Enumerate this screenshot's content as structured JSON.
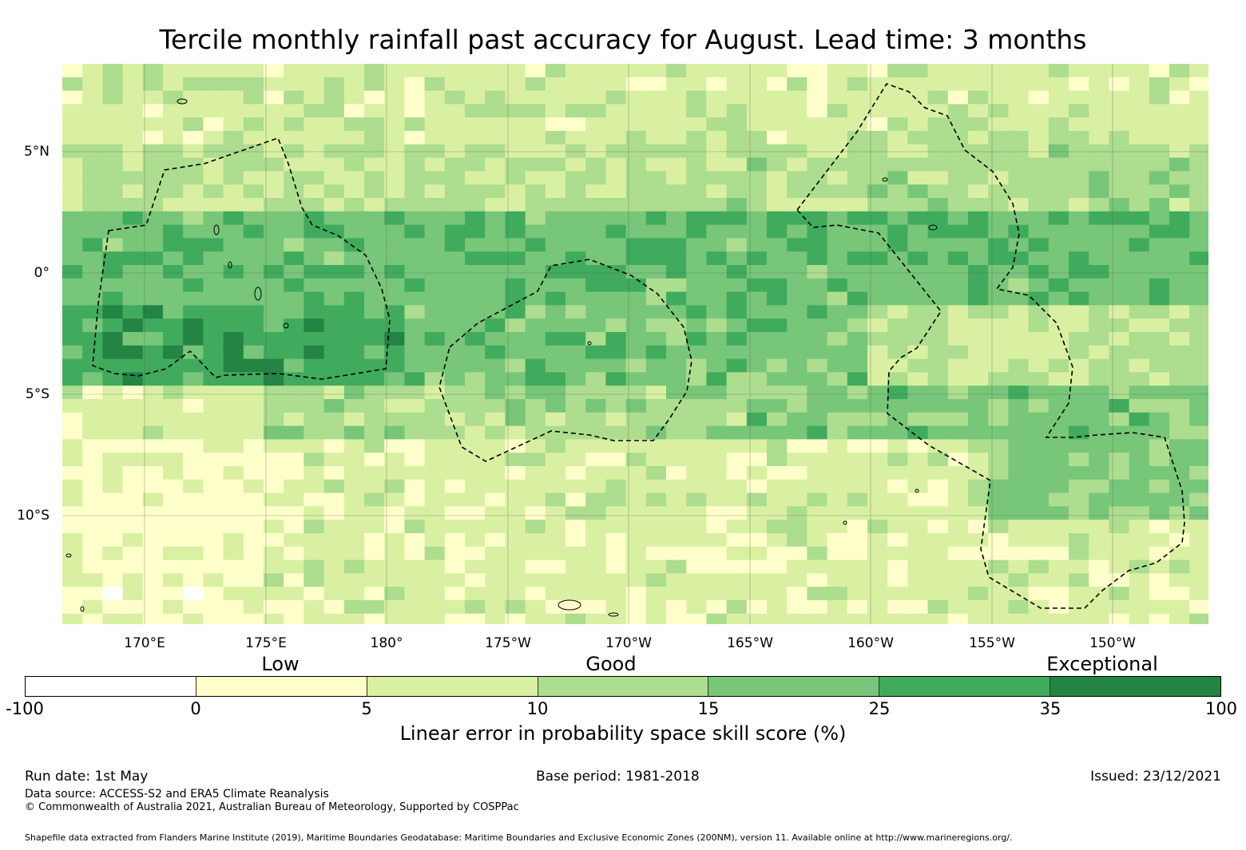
{
  "title": "Tercile monthly rainfall past accuracy for August. Lead time: 3 months",
  "map": {
    "lat_labels": [
      "5°N",
      "0°",
      "5°S",
      "10°S"
    ],
    "lon_labels": [
      "170°E",
      "175°E",
      "180°",
      "175°W",
      "170°W",
      "165°W",
      "160°W",
      "155°W",
      "150°W"
    ]
  },
  "colorbar": {
    "category_words": [
      "Low",
      "Good",
      "Exceptional"
    ],
    "ticks": [
      "-100",
      "0",
      "5",
      "10",
      "15",
      "25",
      "35",
      "100"
    ],
    "colors": [
      "#ffffff",
      "#ffffcc",
      "#d9f0a3",
      "#addd8e",
      "#78c679",
      "#41ab5d",
      "#238443"
    ],
    "label": "Linear error in probability space skill score (%)"
  },
  "footer": {
    "run_date": "Run date: 1st May",
    "base_period": "Base period: 1981-2018",
    "issued": "Issued: 23/12/2021",
    "data_source": "Data source: ACCESS-S2 and ERA5 Climate Reanalysis",
    "copyright": "© Commonwealth of Australia 2021, Australian Bureau of Meteorology, Supported by COSPPac",
    "shapefile": "Shapefile data extracted from Flanders Marine Institute (2019), Maritime Boundaries Geodatabase: Maritime Boundaries and Exclusive Economic Zones (200NM), version 11. Available online at http://www.marineregions.org/."
  }
}
